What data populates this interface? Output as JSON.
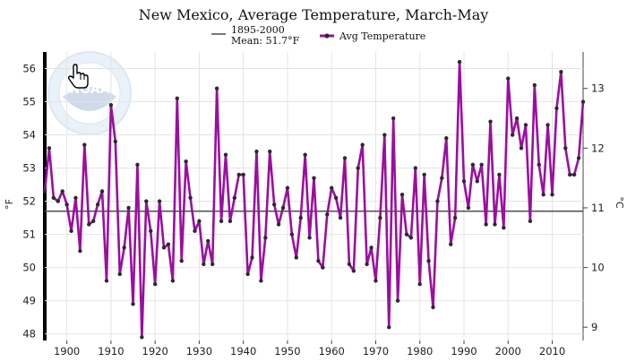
{
  "chart_data": {
    "type": "line",
    "title": "New Mexico, Average Temperature, March-May",
    "ylabel_left": "°F",
    "ylabel_right": "°C",
    "xlim": [
      1895,
      2017
    ],
    "ylim": [
      47.8,
      56.5
    ],
    "y_ticks_left": [
      48,
      49,
      50,
      51,
      52,
      53,
      54,
      55,
      56
    ],
    "y_ticks_right": [
      9,
      10,
      11,
      12,
      13
    ],
    "x_ticks": [
      1900,
      1910,
      1920,
      1930,
      1940,
      1950,
      1960,
      1970,
      1980,
      1990,
      2000,
      2010
    ],
    "grid": true,
    "legend_placement": "top",
    "reference_line": {
      "label": "1895-2000",
      "mean_label": "Mean: 51.7°F",
      "value": 51.7,
      "color": "#555555"
    },
    "series": [
      {
        "name": "Avg Temperature",
        "color": "#9b0ea1",
        "marker_color": "#2b2b2b",
        "x": [
          1895,
          1896,
          1897,
          1898,
          1899,
          1900,
          1901,
          1902,
          1903,
          1904,
          1905,
          1906,
          1907,
          1908,
          1909,
          1910,
          1911,
          1912,
          1913,
          1914,
          1915,
          1916,
          1917,
          1918,
          1919,
          1920,
          1921,
          1922,
          1923,
          1924,
          1925,
          1926,
          1927,
          1928,
          1929,
          1930,
          1931,
          1932,
          1933,
          1934,
          1935,
          1936,
          1937,
          1938,
          1939,
          1940,
          1941,
          1942,
          1943,
          1944,
          1945,
          1946,
          1947,
          1948,
          1949,
          1950,
          1951,
          1952,
          1953,
          1954,
          1955,
          1956,
          1957,
          1958,
          1959,
          1960,
          1961,
          1962,
          1963,
          1964,
          1965,
          1966,
          1967,
          1968,
          1969,
          1970,
          1971,
          1972,
          1973,
          1974,
          1975,
          1976,
          1977,
          1978,
          1979,
          1980,
          1981,
          1982,
          1983,
          1984,
          1985,
          1986,
          1987,
          1988,
          1989,
          1990,
          1991,
          1992,
          1993,
          1994,
          1995,
          1996,
          1997,
          1998,
          1999,
          2000,
          2001,
          2002,
          2003,
          2004,
          2005,
          2006,
          2007,
          2008,
          2009,
          2010,
          2011,
          2012,
          2013,
          2014,
          2015,
          2016,
          2017
        ],
        "values": [
          52.3,
          53.6,
          52.1,
          52.0,
          52.3,
          51.9,
          51.1,
          52.1,
          50.5,
          53.7,
          51.3,
          51.4,
          51.9,
          52.3,
          49.6,
          54.9,
          53.8,
          49.8,
          50.6,
          51.8,
          48.9,
          53.1,
          47.9,
          52.0,
          51.1,
          49.5,
          52.0,
          50.6,
          50.7,
          49.6,
          55.1,
          50.2,
          53.2,
          52.1,
          51.1,
          51.4,
          50.1,
          50.8,
          50.1,
          55.4,
          51.4,
          53.4,
          51.4,
          52.1,
          52.8,
          52.8,
          49.8,
          50.3,
          53.5,
          49.6,
          50.9,
          53.5,
          51.9,
          51.3,
          51.8,
          52.4,
          51.0,
          50.3,
          51.5,
          53.4,
          50.9,
          52.7,
          50.2,
          50.0,
          51.6,
          52.4,
          52.1,
          51.5,
          53.3,
          50.1,
          49.9,
          53.0,
          53.7,
          50.1,
          50.6,
          49.6,
          51.5,
          54.0,
          48.2,
          54.5,
          49.0,
          52.2,
          51.0,
          50.9,
          53.0,
          49.5,
          52.8,
          50.2,
          48.8,
          52.0,
          52.7,
          53.9,
          50.7,
          51.5,
          56.2,
          52.6,
          51.8,
          53.1,
          52.6,
          53.1,
          51.3,
          54.4,
          51.3,
          52.8,
          51.2,
          55.7,
          54.0,
          54.5,
          53.6,
          54.3,
          51.4,
          55.5,
          53.1,
          52.2,
          54.3,
          52.2,
          54.8,
          55.9,
          53.6,
          52.8,
          52.8,
          53.3,
          55.0
        ]
      }
    ]
  }
}
